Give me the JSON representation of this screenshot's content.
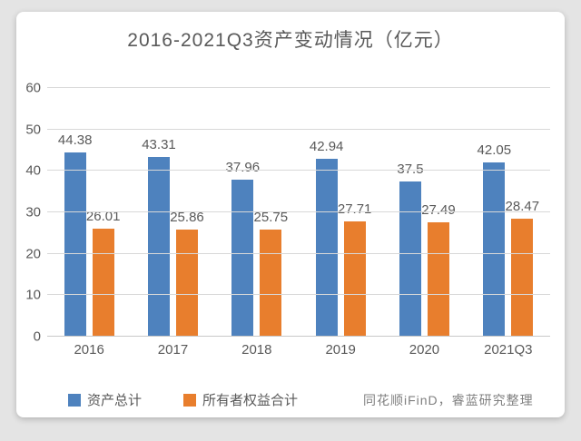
{
  "title": "2016-2021Q3资产变动情况（亿元）",
  "source_note": "同花顺iFinD，睿蓝研究整理",
  "colors": {
    "series_blue": "#4e82be",
    "series_orange": "#e87e2d",
    "text_gray": "#595959",
    "gridline": "#d8d8d8",
    "card_background": "#ffffff",
    "page_background": "#e4e4e4"
  },
  "chart_data": {
    "type": "bar",
    "title": "2016-2021Q3资产变动情况（亿元）",
    "categories": [
      "2016",
      "2017",
      "2018",
      "2019",
      "2020",
      "2021Q3"
    ],
    "series": [
      {
        "name": "资产总计",
        "color": "#4e82be",
        "values": [
          44.38,
          43.31,
          37.96,
          42.94,
          37.5,
          42.05
        ]
      },
      {
        "name": "所有者权益合计",
        "color": "#e87e2d",
        "values": [
          26.01,
          25.86,
          25.75,
          27.71,
          27.49,
          28.47
        ]
      }
    ],
    "xlabel": "",
    "ylabel": "",
    "ylim": [
      0,
      60
    ],
    "ytick_step": 10,
    "yticks": [
      0,
      10,
      20,
      30,
      40,
      50,
      60
    ],
    "grid": true,
    "data_labels": true,
    "legend_position": "bottom"
  }
}
